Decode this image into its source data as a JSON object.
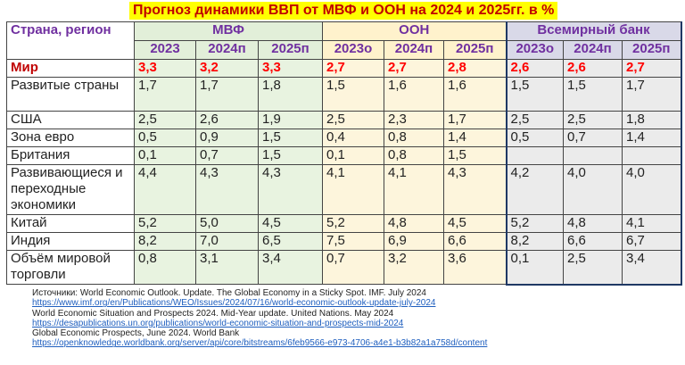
{
  "title": "Прогноз динамики ВВП от МВФ и ООН на 2024 и 2025гг. в %",
  "header": {
    "country_label": "Страна, регион",
    "groups": [
      "МВФ",
      "ООН",
      "Всемирный банк"
    ],
    "years": [
      "2023",
      "2024п",
      "2025п",
      "2023о",
      "2024п",
      "2025п",
      "2023о",
      "2024п",
      "2025п"
    ]
  },
  "rows": [
    {
      "name": "Мир",
      "values": [
        "3,3",
        "3,2",
        "3,3",
        "2,7",
        "2,7",
        "2,8",
        "2,6",
        "2,6",
        "2,7"
      ]
    },
    {
      "name": "Развитые страны",
      "values": [
        "1,7",
        "1,7",
        "1,8",
        "1,5",
        "1,6",
        "1,6",
        "1,5",
        "1,5",
        "1,7"
      ]
    },
    {
      "name": "США",
      "values": [
        "2,5",
        "2,6",
        "1,9",
        "2,5",
        "2,3",
        "1,7",
        "2,5",
        "2,5",
        "1,8"
      ]
    },
    {
      "name": "Зона евро",
      "values": [
        "0,5",
        "0,9",
        "1,5",
        "0,4",
        "0,8",
        "1,4",
        "0,5",
        "0,7",
        "1,4"
      ]
    },
    {
      "name": "Британия",
      "values": [
        "0,1",
        "0,7",
        "1,5",
        "0,1",
        "0,8",
        "1,5",
        "",
        "",
        ""
      ]
    },
    {
      "name": "Развивающиеся и переходные экономики",
      "values": [
        "4,4",
        "4,3",
        "4,3",
        "4,1",
        "4,1",
        "4,3",
        "4,2",
        "4,0",
        "4,0"
      ]
    },
    {
      "name": "Китай",
      "values": [
        "5,2",
        "5,0",
        "4,5",
        "5,2",
        "4,8",
        "4,5",
        "5,2",
        "4,8",
        "4,1"
      ]
    },
    {
      "name": "Индия",
      "values": [
        "8,2",
        "7,0",
        "6,5",
        "7,5",
        "6,9",
        "6,6",
        "8,2",
        "6,6",
        "6,7"
      ]
    },
    {
      "name": "Объём мировой торговли",
      "values": [
        "0,8",
        "3,1",
        "3,4",
        "0,7",
        "3,2",
        "3,6",
        "0,1",
        "2,5",
        "3,4"
      ]
    }
  ],
  "sources": [
    {
      "text": "Источники: World Economic Outlook. Update. The Global Economy in a Sticky Spot. IMF. July 2024",
      "link": false
    },
    {
      "text": "https://www.imf.org/en/Publications/WEO/Issues/2024/07/16/world-economic-outlook-update-july-2024",
      "link": true
    },
    {
      "text": "World Economic Situation and Prospects 2024. Mid-Year update. United Nations. May 2024",
      "link": false
    },
    {
      "text": "https://desapublications.un.org/publications/world-economic-situation-and-prospects-mid-2024",
      "link": true
    },
    {
      "text": "Global Economic Prospects, June 2024. World Bank",
      "link": false
    },
    {
      "text": "https://openknowledge.worldbank.org/server/api/core/bitstreams/6feb9566-e973-4706-a4e1-b3b82a1a758d/content",
      "link": true
    }
  ]
}
